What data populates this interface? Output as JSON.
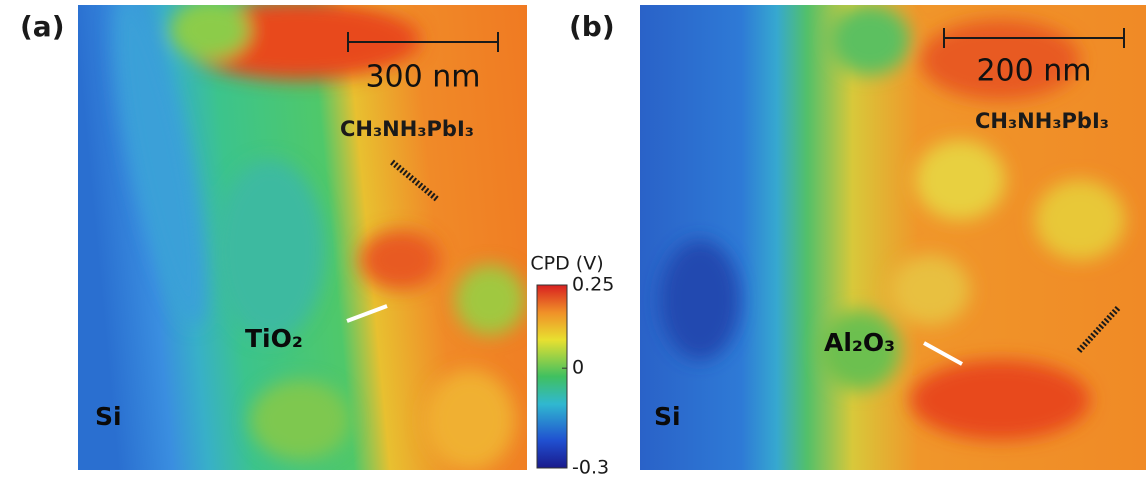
{
  "panels": [
    {
      "label": "(a)",
      "scale_bar": "300 nm",
      "film": "CH₃NH₃PbI₃",
      "layer": "TiO₂",
      "substrate": "Si"
    },
    {
      "label": "(b)",
      "scale_bar": "200 nm",
      "film": "CH₃NH₃PbI₃",
      "layer": "Al₂O₃",
      "substrate": "Si"
    }
  ],
  "colorbar": {
    "label": "CPD (V)",
    "lim": [
      -0.3,
      0.25
    ],
    "ticks": [
      -0.3,
      0,
      0.25
    ]
  }
}
